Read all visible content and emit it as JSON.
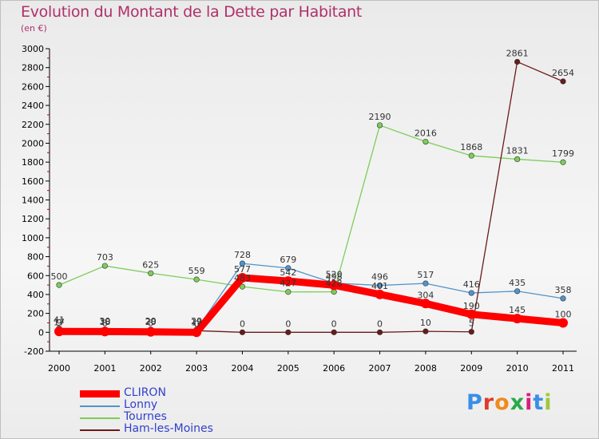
{
  "title": "Evolution du Montant de la Dette par Habitant",
  "subtitle": "(en €)",
  "logo": {
    "text": "Proxiti",
    "colors": [
      "#3a8ee6",
      "#e03a2a",
      "#f08a1c",
      "#2ca84a",
      "#d61f7a",
      "#3a8ee6",
      "#9fc93c"
    ]
  },
  "chart_data": {
    "type": "line",
    "x": [
      "2000",
      "2001",
      "2002",
      "2003",
      "2004",
      "2005",
      "2006",
      "2007",
      "2008",
      "2009",
      "2010",
      "2011"
    ],
    "ylim": [
      -200,
      3000
    ],
    "yticks": [
      "-200",
      "0",
      "200",
      "400",
      "600",
      "800",
      "1000",
      "1200",
      "1400",
      "1600",
      "1800",
      "2000",
      "2200",
      "2400",
      "2600",
      "2800",
      "3000"
    ],
    "grid": false,
    "legend_position": "bottom-left",
    "series": [
      {
        "name": "CLIRON",
        "color": "#ff0000",
        "values": [
          9,
          8,
          5,
          0,
          577,
          542,
          498,
          401,
          304,
          190,
          145,
          100
        ],
        "labels": [
          "9",
          "8",
          "5",
          "0",
          "577",
          "542",
          "498",
          "401",
          "304",
          "190",
          "145",
          "100"
        ]
      },
      {
        "name": "Lonny",
        "color": "#4f94cd",
        "values": [
          41,
          30,
          29,
          29,
          728,
          679,
          520,
          496,
          517,
          416,
          435,
          358
        ],
        "labels": [
          "41",
          "30",
          "29",
          "29",
          "728",
          "679",
          "520",
          "496",
          "517",
          "416",
          "435",
          "358"
        ]
      },
      {
        "name": "Tournes",
        "color": "#7ccd5a",
        "values": [
          500,
          703,
          625,
          559,
          483,
          427,
          428,
          2190,
          2016,
          1868,
          1831,
          1799
        ],
        "labels": [
          "500",
          "703",
          "625",
          "559",
          "483",
          "427",
          "428",
          "2190",
          "2016",
          "1868",
          "1831",
          "1799"
        ]
      },
      {
        "name": "Ham-les-Moines",
        "color": "#6b1a1a",
        "values": [
          17,
          18,
          20,
          17,
          0,
          0,
          0,
          0,
          10,
          5,
          2861,
          2654
        ],
        "labels": [
          "17",
          "18",
          "20",
          "17",
          "0",
          "0",
          "0",
          "0",
          "10",
          "5",
          "2861",
          "2654"
        ]
      }
    ]
  }
}
